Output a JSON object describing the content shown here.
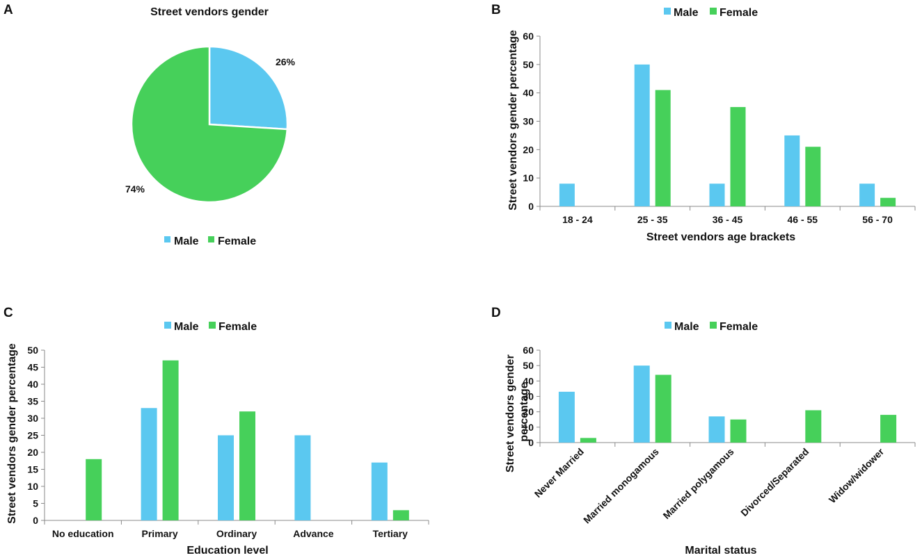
{
  "colors": {
    "male": "#5BC8F0",
    "female": "#46D05A",
    "axis": "#888888"
  },
  "chart_data": [
    {
      "panel": "A",
      "type": "pie",
      "title": "Street vendors gender",
      "labels": [
        "Male",
        "Female"
      ],
      "values": [
        26,
        74
      ],
      "value_labels": [
        "26%",
        "74%"
      ],
      "legend": [
        "Male",
        "Female"
      ]
    },
    {
      "panel": "B",
      "type": "bar",
      "categories": [
        "18 - 24",
        "25 - 35",
        "36 - 45",
        "46 - 55",
        "56 - 70"
      ],
      "series": [
        {
          "name": "Male",
          "values": [
            8,
            50,
            8,
            25,
            8
          ]
        },
        {
          "name": "Female",
          "values": [
            0,
            41,
            35,
            21,
            3
          ]
        }
      ],
      "xlabel": "Street vendors age brackets",
      "ylabel": "Street vendors gender percentage",
      "ylim": [
        0,
        60
      ],
      "yticks": [
        "0",
        "10",
        "20",
        "30",
        "40",
        "50",
        "60"
      ]
    },
    {
      "panel": "C",
      "type": "bar",
      "categories": [
        "No education",
        "Primary",
        "Ordinary",
        "Advance",
        "Tertiary"
      ],
      "series": [
        {
          "name": "Male",
          "values": [
            0,
            33,
            25,
            25,
            17
          ]
        },
        {
          "name": "Female",
          "values": [
            18,
            47,
            32,
            0,
            3
          ]
        }
      ],
      "xlabel": "Education level",
      "ylabel": "Street vendors gender percentage",
      "ylim": [
        0,
        50
      ],
      "yticks": [
        "0",
        "5",
        "10",
        "15",
        "20",
        "25",
        "30",
        "35",
        "40",
        "45",
        "50"
      ]
    },
    {
      "panel": "D",
      "type": "bar",
      "categories": [
        "Never Married",
        "Married monogamous",
        "Married polygamous",
        "Divorced/Separated",
        "Widow/widower"
      ],
      "series": [
        {
          "name": "Male",
          "values": [
            33,
            50,
            17,
            0,
            0
          ]
        },
        {
          "name": "Female",
          "values": [
            3,
            44,
            15,
            21,
            18
          ]
        }
      ],
      "xlabel": "Marital status",
      "ylabel_lines": [
        "Street vendors gender",
        "percentage"
      ],
      "ylim": [
        0,
        60
      ],
      "yticks": [
        "0",
        "10",
        "20",
        "30",
        "40",
        "50",
        "60"
      ]
    }
  ]
}
